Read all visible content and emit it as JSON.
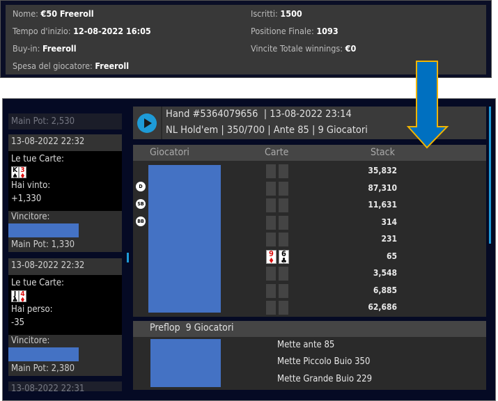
{
  "tournament": {
    "name_label": "Nome:",
    "name": "€50 Freeroll",
    "start_label": "Tempo d'inizio:",
    "start": "12-08-2022 16:05",
    "buyin_label": "Buy-in:",
    "buyin": "Freeroll",
    "spend_label": "Spesa del giocatore:",
    "spend": "Freeroll",
    "entrants_label": "Iscritti:",
    "entrants": "1500",
    "position_label": "Positione Finale:",
    "position": "1093",
    "winnings_label": "Vincite Totale winnings:",
    "winnings": "€0"
  },
  "history": {
    "prev_pot": "Main Pot: 2,530",
    "items": [
      {
        "time": "13-08-2022 22:32",
        "cards_label": "Le tue Carte:",
        "cards": [
          {
            "rank": "K",
            "suit": "♠",
            "color": "black"
          },
          {
            "rank": "3",
            "suit": "♦",
            "color": "red"
          }
        ],
        "result_label": "Hai vinto:",
        "result": "+1,330",
        "winner_label": "Vincitore:",
        "pot": "Main Pot: 1,330"
      },
      {
        "time": "13-08-2022 22:32",
        "cards_label": "Le tue Carte:",
        "cards": [
          {
            "rank": "J",
            "suit": "♣",
            "color": "black"
          },
          {
            "rank": "4",
            "suit": "♦",
            "color": "red"
          }
        ],
        "result_label": "Hai perso:",
        "result": "-35",
        "winner_label": "Vincitore:",
        "pot": "Main Pot: 2,380"
      }
    ],
    "next_time": "13-08-2022 22:31"
  },
  "hand": {
    "line1": "Hand #5364079656  | 13-08-2022 23:14",
    "line2": "NL Hold'em | 350/700 | Ante 85 | 9 Giocatori",
    "col_players": "Giocatori",
    "col_cards": "Carte",
    "col_stack": "Stack",
    "badges": [
      "D",
      "SB",
      "BB"
    ],
    "stacks": [
      "35,832",
      "87,310",
      "11,631",
      "314",
      "231",
      "65",
      "3,548",
      "6,885",
      "62,686"
    ],
    "hero_cards": [
      {
        "rank": "9",
        "suit": "♦",
        "color": "red"
      },
      {
        "rank": "6",
        "suit": "♣",
        "color": "black"
      }
    ]
  },
  "preflop": {
    "title": "Preflop  9 Giocatori",
    "actions": [
      "Mette ante 85",
      "Mette Piccolo Buio 350",
      "Mette Grande Buio 229"
    ]
  },
  "colors": {
    "accent": "#1e9bd7",
    "redacted": "#4472c4",
    "arrow": "#0070c0"
  }
}
